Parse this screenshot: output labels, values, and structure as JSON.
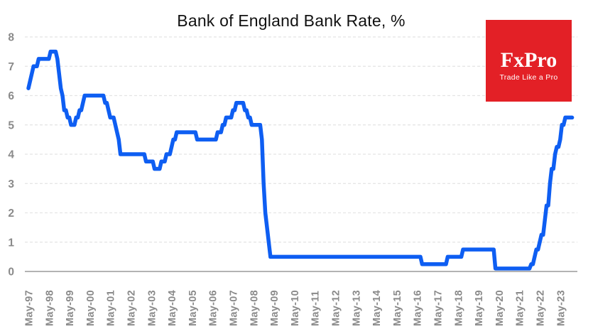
{
  "title": "Bank of England Bank Rate, %",
  "logo": {
    "brand": "FxPro",
    "tagline": "Trade Like a Pro",
    "bg_color": "#e32026",
    "text_color": "#ffffff"
  },
  "colors": {
    "line": "#0e5ef2",
    "grid": "#e4e4e4",
    "axis": "#9a9a9a",
    "tick_label": "#8a8a8a",
    "title": "#111111",
    "background": "#ffffff"
  },
  "chart_data": {
    "type": "line",
    "title": "Bank of England Bank Rate, %",
    "xlabel": "",
    "ylabel": "",
    "ylim": [
      0,
      8
    ],
    "y_ticks": [
      0,
      1,
      2,
      3,
      4,
      5,
      6,
      7,
      8
    ],
    "grid": "horizontal-dashed",
    "legend": "none",
    "x_tick_labels": [
      "May-97",
      "May-98",
      "May-99",
      "May-00",
      "May-01",
      "May-02",
      "May-03",
      "May-04",
      "May-05",
      "May-06",
      "May-07",
      "May-08",
      "May-09",
      "May-10",
      "May-11",
      "May-12",
      "May-13",
      "May-14",
      "May-15",
      "May-16",
      "May-17",
      "May-18",
      "May-19",
      "May-20",
      "May-21",
      "May-22",
      "May-23"
    ],
    "series": [
      {
        "name": "Bank Rate",
        "color": "#0e5ef2",
        "start": "1997-05",
        "end": "2023-12",
        "rate_changes": [
          [
            "1997-05",
            6.25
          ],
          [
            "1997-06",
            6.5
          ],
          [
            "1997-07",
            6.75
          ],
          [
            "1997-08",
            7.0
          ],
          [
            "1997-11",
            7.25
          ],
          [
            "1998-06",
            7.5
          ],
          [
            "1998-10",
            7.25
          ],
          [
            "1998-11",
            6.75
          ],
          [
            "1998-12",
            6.25
          ],
          [
            "1999-01",
            6.0
          ],
          [
            "1999-02",
            5.5
          ],
          [
            "1999-04",
            5.25
          ],
          [
            "1999-06",
            5.0
          ],
          [
            "1999-09",
            5.25
          ],
          [
            "1999-11",
            5.5
          ],
          [
            "2000-01",
            5.75
          ],
          [
            "2000-02",
            6.0
          ],
          [
            "2001-02",
            5.75
          ],
          [
            "2001-04",
            5.5
          ],
          [
            "2001-05",
            5.25
          ],
          [
            "2001-08",
            5.0
          ],
          [
            "2001-09",
            4.75
          ],
          [
            "2001-10",
            4.5
          ],
          [
            "2001-11",
            4.0
          ],
          [
            "2003-02",
            3.75
          ],
          [
            "2003-07",
            3.5
          ],
          [
            "2003-11",
            3.75
          ],
          [
            "2004-02",
            4.0
          ],
          [
            "2004-05",
            4.25
          ],
          [
            "2004-06",
            4.5
          ],
          [
            "2004-08",
            4.75
          ],
          [
            "2005-08",
            4.5
          ],
          [
            "2006-08",
            4.75
          ],
          [
            "2006-11",
            5.0
          ],
          [
            "2007-01",
            5.25
          ],
          [
            "2007-05",
            5.5
          ],
          [
            "2007-07",
            5.75
          ],
          [
            "2007-12",
            5.5
          ],
          [
            "2008-02",
            5.25
          ],
          [
            "2008-04",
            5.0
          ],
          [
            "2008-10",
            4.5
          ],
          [
            "2008-11",
            3.0
          ],
          [
            "2008-12",
            2.0
          ],
          [
            "2009-01",
            1.5
          ],
          [
            "2009-02",
            1.0
          ],
          [
            "2009-03",
            0.5
          ],
          [
            "2016-08",
            0.25
          ],
          [
            "2017-11",
            0.5
          ],
          [
            "2018-08",
            0.75
          ],
          [
            "2020-03",
            0.1
          ],
          [
            "2021-12",
            0.25
          ],
          [
            "2022-02",
            0.5
          ],
          [
            "2022-03",
            0.75
          ],
          [
            "2022-05",
            1.0
          ],
          [
            "2022-06",
            1.25
          ],
          [
            "2022-08",
            1.75
          ],
          [
            "2022-09",
            2.25
          ],
          [
            "2022-11",
            3.0
          ],
          [
            "2022-12",
            3.5
          ],
          [
            "2023-02",
            4.0
          ],
          [
            "2023-03",
            4.25
          ],
          [
            "2023-05",
            4.5
          ],
          [
            "2023-06",
            5.0
          ],
          [
            "2023-08",
            5.25
          ]
        ]
      }
    ]
  }
}
